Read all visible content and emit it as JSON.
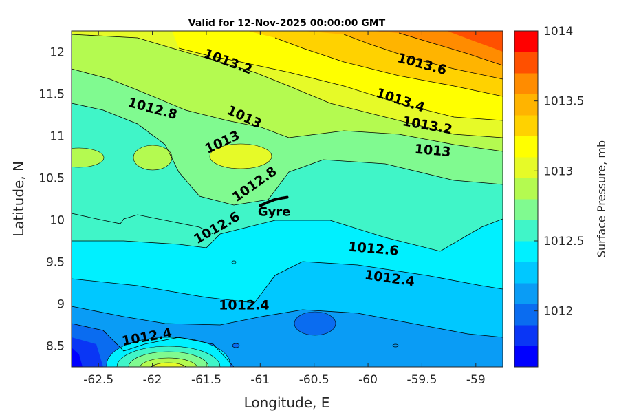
{
  "chart_data": {
    "type": "contourf",
    "title": "Valid for 12-Nov-2025 00:00:00 GMT",
    "xlabel": "Longitude, E",
    "ylabel": "Latitude, N",
    "xlim": [
      -62.75,
      -58.75
    ],
    "ylim": [
      8.25,
      12.25
    ],
    "xticks": [
      -62.5,
      -62,
      -61.5,
      -61,
      -60.5,
      -60,
      -59.5,
      -59
    ],
    "xtick_labels": [
      "-62.5",
      "-62",
      "-61.5",
      "-61",
      "-60.5",
      "-60",
      "-59.5",
      "-59"
    ],
    "yticks": [
      8.5,
      9,
      9.5,
      10,
      10.5,
      11,
      11.5,
      12
    ],
    "ytick_labels": [
      "8.5",
      "9",
      "9.5",
      "10",
      "10.5",
      "11",
      "11.5",
      "12"
    ],
    "colorbar": {
      "label": "Surface Pressure, mb",
      "range": [
        1011.6,
        1014.0
      ],
      "step": 0.1,
      "ticks": [
        1012,
        1012.5,
        1013,
        1013.5,
        1014
      ],
      "tick_labels": [
        "1012",
        "1012.5",
        "1013",
        "1013.5",
        "1014"
      ],
      "colors": [
        "#0000ff",
        "#0a36f5",
        "#0a6cf0",
        "#0a9cf5",
        "#00c8ff",
        "#00f0ff",
        "#40f5c8",
        "#80fa90",
        "#b4fa50",
        "#e6fa28",
        "#ffff00",
        "#ffd200",
        "#ffb400",
        "#ff8c00",
        "#ff5000",
        "#ff0000"
      ]
    },
    "grid": false,
    "contour_labels": [
      {
        "text": "1013.2",
        "lon": -61.3,
        "lat": 11.88,
        "angle": 20
      },
      {
        "text": "1013.6",
        "lon": -59.5,
        "lat": 11.85,
        "angle": 15
      },
      {
        "text": "1013.4",
        "lon": -59.7,
        "lat": 11.42,
        "angle": 18
      },
      {
        "text": "1013.2",
        "lon": -59.45,
        "lat": 11.12,
        "angle": 10
      },
      {
        "text": "1013",
        "lon": -59.4,
        "lat": 10.82,
        "angle": 5
      },
      {
        "text": "1012.8",
        "lon": -62.0,
        "lat": 11.32,
        "angle": 15
      },
      {
        "text": "1013",
        "lon": -61.15,
        "lat": 11.22,
        "angle": 25
      },
      {
        "text": "1013",
        "lon": -61.35,
        "lat": 10.92,
        "angle": -25
      },
      {
        "text": "1012.8",
        "lon": -61.05,
        "lat": 10.42,
        "angle": -35
      },
      {
        "text": "1012.6",
        "lon": -61.4,
        "lat": 9.9,
        "angle": -30
      },
      {
        "text": "1012.6",
        "lon": -59.95,
        "lat": 9.65,
        "angle": 5
      },
      {
        "text": "1012.4",
        "lon": -59.8,
        "lat": 9.3,
        "angle": 8
      },
      {
        "text": "1012.4",
        "lon": -61.15,
        "lat": 8.98,
        "angle": 0
      },
      {
        "text": "1012.4",
        "lon": -62.05,
        "lat": 8.6,
        "angle": -10
      }
    ],
    "annotations": [
      {
        "text": "Gyre",
        "lon": -60.87,
        "lat": 10.09
      }
    ],
    "track": {
      "lon": [
        -61.0,
        -60.93,
        -60.87,
        -60.8,
        -60.75
      ],
      "lat": [
        10.17,
        10.21,
        10.24,
        10.26,
        10.27
      ]
    }
  }
}
